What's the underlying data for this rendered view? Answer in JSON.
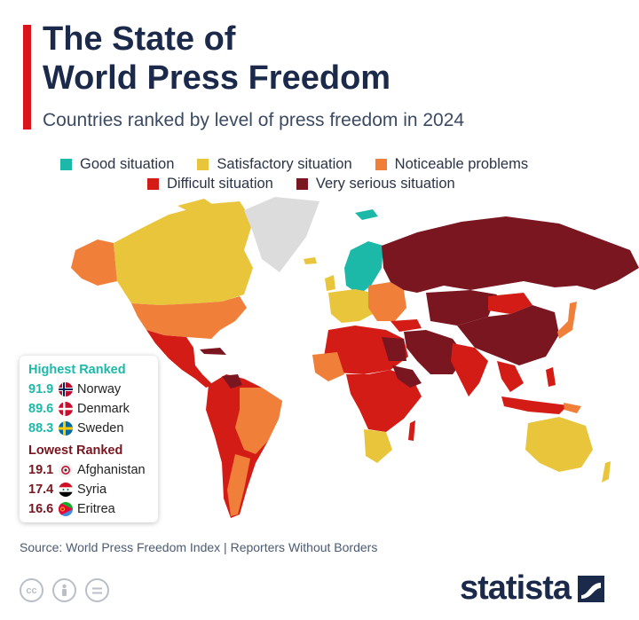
{
  "header": {
    "title_line1": "The State of",
    "title_line2": "World Press Freedom",
    "subtitle": "Countries ranked by level of press freedom in 2024"
  },
  "legend": [
    {
      "label": "Good situation",
      "color": "#1cb9a9"
    },
    {
      "label": "Satisfactory situation",
      "color": "#e9c53c"
    },
    {
      "label": "Noticeable problems",
      "color": "#f07f3a"
    },
    {
      "label": "Difficult situation",
      "color": "#d41c16"
    },
    {
      "label": "Very serious situation",
      "color": "#7a1620"
    }
  ],
  "rankings": {
    "highest_title": "Highest Ranked",
    "highest_color": "#1cb9a9",
    "highest": [
      {
        "score": "91.9",
        "country": "Norway",
        "flag": "norway-flag-icon"
      },
      {
        "score": "89.6",
        "country": "Denmark",
        "flag": "denmark-flag-icon"
      },
      {
        "score": "88.3",
        "country": "Sweden",
        "flag": "sweden-flag-icon"
      }
    ],
    "lowest_title": "Lowest Ranked",
    "lowest_color": "#7a1620",
    "lowest": [
      {
        "score": "19.1",
        "country": "Afghanistan",
        "flag": "afghanistan-flag-icon"
      },
      {
        "score": "17.4",
        "country": "Syria",
        "flag": "syria-flag-icon"
      },
      {
        "score": "16.6",
        "country": "Eritrea",
        "flag": "eritrea-flag-icon"
      }
    ]
  },
  "footer": {
    "source": "Source: World Press Freedom Index | Reporters Without Borders",
    "license_icons": [
      "creative-commons-icon",
      "attribution-icon",
      "no-derivatives-icon"
    ],
    "brand": "statista"
  }
}
